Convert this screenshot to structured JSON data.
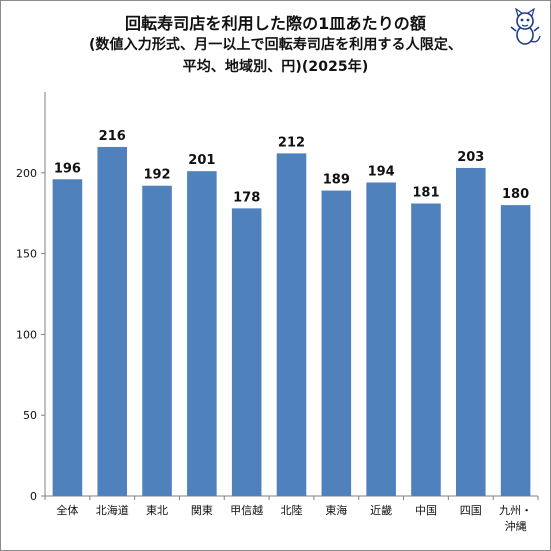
{
  "title": {
    "line1": "回転寿司店を利用した際の1皿あたりの額",
    "line2": "(数値入力形式、月一以上で回転寿司店を利用する人限定、",
    "line3": "平均、地域別、円)(2025年)"
  },
  "mascot": {
    "icon": "cat-mascot-icon"
  },
  "chart_data": {
    "type": "bar",
    "title": "回転寿司店を利用した際の1皿あたりの額 (数値入力形式、月一以上で回転寿司店を利用する人限定、平均、地域別、円)(2025年)",
    "categories": [
      [
        "全体"
      ],
      [
        "北海道"
      ],
      [
        "東北"
      ],
      [
        "関東"
      ],
      [
        "甲信越"
      ],
      [
        "北陸"
      ],
      [
        "東海"
      ],
      [
        "近畿"
      ],
      [
        "中国"
      ],
      [
        "四国"
      ],
      [
        "九州・",
        "沖縄"
      ]
    ],
    "values": [
      196,
      216,
      192,
      201,
      178,
      212,
      189,
      194,
      181,
      203,
      180
    ],
    "ylim": [
      0,
      250
    ],
    "yticks": [
      0,
      50,
      100,
      150,
      200
    ],
    "grid": false,
    "legend": "none",
    "bar_color": "#4F81BD"
  }
}
